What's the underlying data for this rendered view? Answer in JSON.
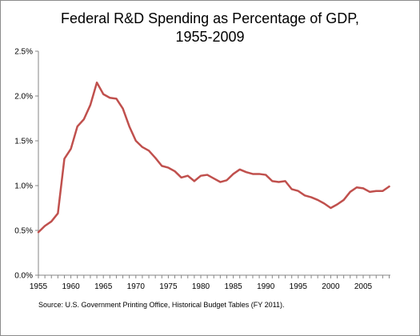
{
  "chart_data": {
    "type": "line",
    "title_line1": "Federal R&D Spending as Percentage of GDP,",
    "title_line2": "1955-2009",
    "xlabel": "",
    "ylabel": "",
    "x": [
      1955,
      1956,
      1957,
      1958,
      1959,
      1960,
      1961,
      1962,
      1963,
      1964,
      1965,
      1966,
      1967,
      1968,
      1969,
      1970,
      1971,
      1972,
      1973,
      1974,
      1975,
      1976,
      1977,
      1978,
      1979,
      1980,
      1981,
      1982,
      1983,
      1984,
      1985,
      1986,
      1987,
      1988,
      1989,
      1990,
      1991,
      1992,
      1993,
      1994,
      1995,
      1996,
      1997,
      1998,
      1999,
      2000,
      2001,
      2002,
      2003,
      2004,
      2005,
      2006,
      2007,
      2008,
      2009
    ],
    "series": [
      {
        "values": [
          0.48,
          0.55,
          0.6,
          0.69,
          1.3,
          1.41,
          1.66,
          1.74,
          1.9,
          2.15,
          2.02,
          1.98,
          1.97,
          1.86,
          1.66,
          1.5,
          1.43,
          1.39,
          1.31,
          1.22,
          1.2,
          1.16,
          1.09,
          1.11,
          1.05,
          1.11,
          1.12,
          1.08,
          1.04,
          1.06,
          1.13,
          1.18,
          1.15,
          1.13,
          1.13,
          1.12,
          1.05,
          1.04,
          1.05,
          0.96,
          0.94,
          0.89,
          0.87,
          0.84,
          0.8,
          0.75,
          0.79,
          0.84,
          0.93,
          0.98,
          0.97,
          0.93,
          0.94,
          0.94,
          0.99
        ],
        "color": "#c0504d"
      }
    ],
    "ylim": [
      0,
      2.5
    ],
    "y_ticks": [
      "0.0%",
      "0.5%",
      "1.0%",
      "1.5%",
      "2.0%",
      "2.5%"
    ],
    "x_ticks": [
      "1955",
      "1960",
      "1965",
      "1970",
      "1975",
      "1980",
      "1985",
      "1990",
      "1995",
      "2000",
      "2005"
    ],
    "grid": false,
    "legend": "none",
    "source": "Source: U.S. Government Printing Office, Historical Budget Tables (FY 2011)."
  }
}
